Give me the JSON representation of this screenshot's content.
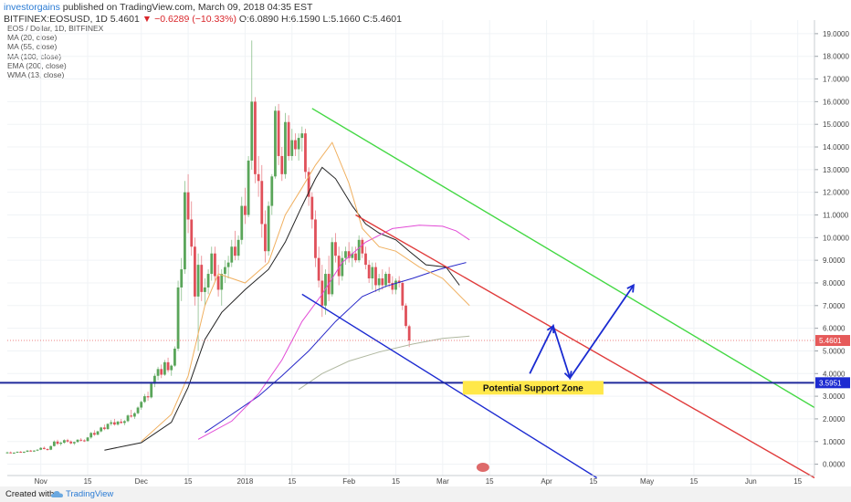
{
  "header": {
    "author": "investorgains",
    "published": "published on TradingView.com, March 09, 2018 04:35 EST",
    "symbol": "BITFINEX:EOSUSD, 1D",
    "last": "5.4601",
    "change_arrow": "▼",
    "change": "−0.6289 (−10.33%)",
    "ohlc": "O:6.0890 H:6.1590 L:5.1660 C:5.4601"
  },
  "indicators": [
    "EOS / Dollar, 1D, BITFINEX",
    "MA (20, close)",
    "MA (55, close)",
    "MA (100, close)",
    "EMA (200, close)",
    "WMA (13, close)"
  ],
  "footer": {
    "created_with": "Created with",
    "brand": "TradingView"
  },
  "colors": {
    "up": "#5aa55a",
    "down": "#e0505a",
    "wick": "#b0b0b0",
    "ma20": "#222222",
    "ma55": "#2626c8",
    "ma100": "#e24bd6",
    "ema200": "#b0b8a0",
    "wma13": "#f0b060",
    "green_line": "#44d844",
    "red_line": "#e03b3b",
    "blue_line": "#1d2bd1",
    "support": "#202a9c",
    "zone": "#ffe84a",
    "label_price": "#e65a5a",
    "label_support": "#1d2bd1",
    "arrow": "#1a2bd1"
  },
  "chart_data": {
    "type": "candlestick",
    "title": "EOS / Dollar, 1D, BITFINEX",
    "y_axis": {
      "ticks": [
        "19.0000",
        "18.0000",
        "17.0000",
        "16.0000",
        "15.0000",
        "14.0000",
        "13.0000",
        "12.0000",
        "11.0000",
        "10.0000",
        "9.0000",
        "8.0000",
        "7.0000",
        "6.0000",
        "5.0000",
        "4.0000",
        "3.0000",
        "2.0000",
        "1.0000",
        "0.0000"
      ],
      "ylim": [
        -0.5,
        19.6
      ]
    },
    "x_axis": {
      "ticks": [
        "Nov",
        "15",
        "Dec",
        "15",
        "2018",
        "15",
        "Feb",
        "15",
        "Mar",
        "15",
        "Apr",
        "15",
        "May",
        "15",
        "Jun",
        "15"
      ],
      "range": [
        "2017-10-22",
        "2018-06-20"
      ]
    },
    "last_price": "5.4601",
    "support_price": "3.5951",
    "candles_start": "2017-10-22",
    "candles": [
      [
        0.5,
        0.55,
        0.48,
        0.52
      ],
      [
        0.52,
        0.56,
        0.48,
        0.49
      ],
      [
        0.49,
        0.53,
        0.46,
        0.51
      ],
      [
        0.51,
        0.56,
        0.49,
        0.55
      ],
      [
        0.55,
        0.58,
        0.5,
        0.52
      ],
      [
        0.52,
        0.56,
        0.49,
        0.55
      ],
      [
        0.55,
        0.62,
        0.53,
        0.6
      ],
      [
        0.6,
        0.63,
        0.55,
        0.57
      ],
      [
        0.57,
        0.62,
        0.54,
        0.6
      ],
      [
        0.6,
        0.66,
        0.58,
        0.64
      ],
      [
        0.64,
        0.75,
        0.62,
        0.72
      ],
      [
        0.72,
        0.78,
        0.65,
        0.67
      ],
      [
        0.67,
        0.7,
        0.6,
        0.64
      ],
      [
        0.64,
        0.82,
        0.62,
        0.8
      ],
      [
        0.8,
        1.05,
        0.78,
        1.0
      ],
      [
        1.0,
        1.08,
        0.85,
        0.9
      ],
      [
        0.9,
        1.0,
        0.82,
        0.95
      ],
      [
        0.95,
        1.1,
        0.9,
        1.06
      ],
      [
        1.06,
        1.12,
        0.95,
        1.0
      ],
      [
        1.0,
        1.05,
        0.88,
        0.92
      ],
      [
        0.92,
        1.0,
        0.85,
        0.98
      ],
      [
        0.98,
        1.1,
        0.95,
        1.08
      ],
      [
        1.08,
        1.15,
        1.0,
        1.05
      ],
      [
        1.05,
        1.1,
        0.98,
        1.02
      ],
      [
        1.02,
        1.2,
        1.0,
        1.18
      ],
      [
        1.18,
        1.42,
        1.12,
        1.38
      ],
      [
        1.38,
        1.5,
        1.25,
        1.3
      ],
      [
        1.3,
        1.48,
        1.28,
        1.45
      ],
      [
        1.45,
        1.65,
        1.4,
        1.62
      ],
      [
        1.62,
        1.75,
        1.5,
        1.55
      ],
      [
        1.55,
        1.8,
        1.52,
        1.78
      ],
      [
        1.78,
        1.95,
        1.7,
        1.85
      ],
      [
        1.85,
        2.0,
        1.7,
        1.75
      ],
      [
        1.75,
        1.92,
        1.7,
        1.88
      ],
      [
        1.88,
        2.0,
        1.78,
        1.82
      ],
      [
        1.82,
        1.95,
        1.72,
        1.9
      ],
      [
        1.9,
        2.2,
        1.85,
        2.15
      ],
      [
        2.15,
        2.4,
        2.05,
        2.1
      ],
      [
        2.1,
        2.3,
        2.0,
        2.25
      ],
      [
        2.25,
        2.55,
        2.2,
        2.5
      ],
      [
        2.5,
        2.8,
        2.4,
        2.75
      ],
      [
        2.75,
        3.1,
        2.7,
        3.0
      ],
      [
        3.0,
        3.2,
        2.8,
        2.95
      ],
      [
        2.95,
        3.6,
        2.9,
        3.55
      ],
      [
        3.55,
        4.0,
        3.4,
        3.9
      ],
      [
        3.9,
        4.3,
        3.7,
        4.2
      ],
      [
        4.2,
        4.4,
        3.8,
        3.95
      ],
      [
        3.95,
        4.6,
        3.9,
        4.5
      ],
      [
        4.5,
        4.7,
        4.05,
        4.15
      ],
      [
        4.15,
        4.4,
        3.9,
        4.35
      ],
      [
        4.35,
        5.2,
        4.3,
        5.1
      ],
      [
        5.1,
        8.1,
        5.0,
        7.8
      ],
      [
        7.8,
        9.1,
        7.2,
        8.6
      ],
      [
        8.6,
        12.5,
        8.4,
        12.0
      ],
      [
        12.0,
        12.8,
        10.2,
        10.8
      ],
      [
        10.8,
        11.6,
        9.2,
        9.6
      ],
      [
        9.6,
        10.0,
        7.0,
        7.4
      ],
      [
        7.4,
        9.3,
        5.0,
        8.8
      ],
      [
        8.8,
        9.2,
        7.2,
        7.6
      ],
      [
        7.6,
        8.2,
        7.0,
        7.8
      ],
      [
        7.8,
        8.6,
        7.5,
        8.4
      ],
      [
        8.4,
        9.6,
        8.1,
        9.3
      ],
      [
        9.3,
        9.6,
        8.1,
        8.3
      ],
      [
        8.3,
        8.8,
        7.4,
        7.7
      ],
      [
        7.7,
        8.6,
        7.0,
        8.4
      ],
      [
        8.4,
        9.0,
        8.0,
        8.7
      ],
      [
        8.7,
        9.2,
        8.2,
        8.9
      ],
      [
        8.9,
        9.9,
        8.7,
        9.6
      ],
      [
        9.6,
        10.3,
        9.0,
        9.2
      ],
      [
        9.2,
        10.1,
        9.0,
        9.9
      ],
      [
        9.9,
        11.8,
        9.7,
        11.4
      ],
      [
        11.4,
        12.2,
        10.6,
        11.0
      ],
      [
        11.0,
        13.6,
        10.9,
        13.4
      ],
      [
        13.4,
        18.7,
        13.0,
        16.0
      ],
      [
        16.0,
        16.2,
        12.4,
        12.8
      ],
      [
        12.8,
        13.6,
        11.8,
        12.5
      ],
      [
        12.5,
        13.2,
        10.0,
        10.6
      ],
      [
        10.6,
        11.2,
        8.9,
        9.4
      ],
      [
        9.4,
        11.6,
        9.2,
        11.4
      ],
      [
        11.4,
        12.8,
        11.0,
        12.7
      ],
      [
        12.7,
        15.8,
        12.6,
        15.6
      ],
      [
        15.6,
        15.9,
        13.2,
        13.6
      ],
      [
        13.6,
        14.0,
        12.5,
        12.8
      ],
      [
        12.8,
        15.5,
        12.6,
        15.1
      ],
      [
        15.1,
        15.4,
        13.4,
        13.6
      ],
      [
        13.6,
        14.8,
        13.4,
        14.3
      ],
      [
        14.3,
        14.6,
        13.6,
        13.9
      ],
      [
        13.9,
        14.6,
        13.4,
        14.4
      ],
      [
        14.4,
        14.9,
        13.8,
        14.6
      ],
      [
        14.6,
        14.8,
        12.6,
        12.9
      ],
      [
        12.9,
        13.1,
        11.4,
        11.8
      ],
      [
        11.8,
        12.0,
        10.4,
        10.8
      ],
      [
        10.8,
        11.2,
        8.7,
        9.1
      ],
      [
        9.1,
        9.6,
        7.8,
        8.1
      ],
      [
        8.1,
        8.8,
        6.5,
        7.0
      ],
      [
        7.0,
        8.6,
        6.6,
        8.4
      ],
      [
        8.4,
        9.2,
        7.2,
        7.5
      ],
      [
        7.5,
        10.0,
        7.4,
        9.8
      ],
      [
        9.8,
        10.2,
        8.9,
        9.2
      ],
      [
        9.2,
        9.6,
        7.9,
        8.3
      ],
      [
        8.3,
        9.4,
        8.1,
        9.1
      ],
      [
        9.1,
        9.6,
        8.8,
        9.4
      ],
      [
        9.4,
        9.8,
        8.9,
        9.1
      ],
      [
        9.1,
        9.6,
        8.7,
        9.3
      ],
      [
        9.3,
        9.6,
        8.9,
        9.0
      ],
      [
        9.0,
        10.1,
        8.9,
        9.9
      ],
      [
        9.9,
        10.0,
        9.1,
        9.3
      ],
      [
        9.3,
        9.6,
        8.6,
        8.8
      ],
      [
        8.8,
        9.0,
        8.0,
        8.2
      ],
      [
        8.2,
        8.9,
        7.7,
        8.7
      ],
      [
        8.7,
        8.9,
        7.6,
        7.9
      ],
      [
        7.9,
        8.4,
        7.6,
        8.2
      ],
      [
        8.2,
        8.6,
        7.7,
        7.9
      ],
      [
        7.9,
        8.5,
        7.8,
        8.4
      ],
      [
        8.4,
        8.7,
        7.8,
        8.0
      ],
      [
        8.0,
        8.3,
        7.5,
        7.7
      ],
      [
        7.7,
        8.2,
        7.5,
        8.1
      ],
      [
        8.1,
        8.3,
        7.8,
        8.0
      ],
      [
        8.0,
        8.1,
        6.8,
        7.0
      ],
      [
        7.0,
        7.1,
        6.0,
        6.1
      ],
      [
        6.09,
        6.16,
        5.17,
        5.46
      ]
    ],
    "series": [
      {
        "name": "MA (20, close)",
        "color": "#222222",
        "points": [
          [
            "2017-11-20",
            0.62
          ],
          [
            "2017-12-01",
            0.95
          ],
          [
            "2017-12-10",
            1.85
          ],
          [
            "2017-12-15",
            3.4
          ],
          [
            "2017-12-20",
            5.5
          ],
          [
            "2017-12-25",
            6.7
          ],
          [
            "2018-01-01",
            7.7
          ],
          [
            "2018-01-08",
            8.6
          ],
          [
            "2018-01-13",
            9.8
          ],
          [
            "2018-01-18",
            11.4
          ],
          [
            "2018-01-22",
            12.6
          ],
          [
            "2018-01-24",
            13.1
          ],
          [
            "2018-01-28",
            12.6
          ],
          [
            "2018-02-02",
            11.4
          ],
          [
            "2018-02-06",
            10.6
          ],
          [
            "2018-02-10",
            10.2
          ],
          [
            "2018-02-15",
            9.9
          ],
          [
            "2018-02-19",
            9.4
          ],
          [
            "2018-02-24",
            8.8
          ],
          [
            "2018-03-02",
            8.7
          ],
          [
            "2018-03-06",
            7.9
          ]
        ]
      },
      {
        "name": "MA (55, close)",
        "color": "#2626c8",
        "points": [
          [
            "2017-12-20",
            1.4
          ],
          [
            "2017-12-28",
            2.2
          ],
          [
            "2018-01-05",
            3.0
          ],
          [
            "2018-01-12",
            3.9
          ],
          [
            "2018-01-20",
            5.0
          ],
          [
            "2018-01-28",
            6.3
          ],
          [
            "2018-02-05",
            7.4
          ],
          [
            "2018-02-12",
            7.85
          ],
          [
            "2018-02-20",
            8.2
          ],
          [
            "2018-02-28",
            8.6
          ],
          [
            "2018-03-08",
            8.9
          ]
        ]
      },
      {
        "name": "MA (100, close)",
        "color": "#e24bd6",
        "points": [
          [
            "2017-12-18",
            1.1
          ],
          [
            "2017-12-28",
            1.9
          ],
          [
            "2018-01-05",
            3.1
          ],
          [
            "2018-01-12",
            4.6
          ],
          [
            "2018-01-18",
            6.3
          ],
          [
            "2018-01-24",
            7.5
          ],
          [
            "2018-01-30",
            8.9
          ],
          [
            "2018-02-06",
            9.8
          ],
          [
            "2018-02-14",
            10.4
          ],
          [
            "2018-02-22",
            10.55
          ],
          [
            "2018-03-01",
            10.5
          ],
          [
            "2018-03-05",
            10.3
          ],
          [
            "2018-03-09",
            9.9
          ]
        ]
      },
      {
        "name": "EMA (200, close)",
        "color": "#b0b8a0",
        "points": [
          [
            "2018-01-17",
            3.3
          ],
          [
            "2018-01-24",
            4.0
          ],
          [
            "2018-02-01",
            4.55
          ],
          [
            "2018-02-10",
            4.95
          ],
          [
            "2018-02-20",
            5.3
          ],
          [
            "2018-03-01",
            5.55
          ],
          [
            "2018-03-09",
            5.65
          ]
        ]
      },
      {
        "name": "WMA (13, close)",
        "color": "#f0b060",
        "points": [
          [
            "2017-12-01",
            1.0
          ],
          [
            "2017-12-10",
            2.2
          ],
          [
            "2017-12-15",
            3.9
          ],
          [
            "2017-12-20",
            7.0
          ],
          [
            "2017-12-24",
            8.4
          ],
          [
            "2018-01-01",
            8.0
          ],
          [
            "2018-01-08",
            8.9
          ],
          [
            "2018-01-13",
            11.0
          ],
          [
            "2018-01-18",
            12.2
          ],
          [
            "2018-01-22",
            13.2
          ],
          [
            "2018-01-27",
            14.2
          ],
          [
            "2018-02-01",
            12.4
          ],
          [
            "2018-02-05",
            10.4
          ],
          [
            "2018-02-10",
            9.6
          ],
          [
            "2018-02-15",
            9.4
          ],
          [
            "2018-02-22",
            8.7
          ],
          [
            "2018-03-01",
            8.2
          ],
          [
            "2018-03-09",
            7.0
          ]
        ]
      }
    ],
    "trendlines": [
      {
        "name": "green-trendline",
        "color": "#44d844",
        "from": [
          "2018-01-21",
          15.7
        ],
        "to": [
          "2018-06-20",
          2.5
        ]
      },
      {
        "name": "red-trendline",
        "color": "#e03b3b",
        "from": [
          "2018-02-03",
          11.0
        ],
        "to": [
          "2018-06-20",
          -0.6
        ]
      },
      {
        "name": "blue-trendline",
        "color": "#1d2bd1",
        "from": [
          "2018-01-18",
          7.5
        ],
        "to": [
          "2018-04-16",
          -0.6
        ]
      }
    ],
    "projection_path": [
      [
        "2018-03-27",
        4.0
      ],
      [
        "2018-04-03",
        6.1
      ],
      [
        "2018-04-08",
        3.8
      ],
      [
        "2018-04-27",
        7.9
      ]
    ],
    "annotation": {
      "text": "Potential Support Zone",
      "price": 3.5951
    }
  }
}
